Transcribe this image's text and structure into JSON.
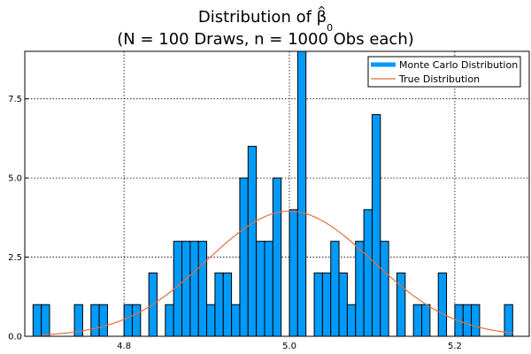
{
  "chart_data": {
    "type": "bar",
    "title": {
      "main": "Distribution of ",
      "beta": "β",
      "hat": "^",
      "subscript": "0",
      "line2": "(N = 100 Draws, n = 1000 Obs each)"
    },
    "xlabel": "",
    "ylabel": "",
    "xlim": [
      4.68,
      5.29
    ],
    "ylim": [
      0,
      9
    ],
    "x_ticks": [
      4.8,
      5.0,
      5.2
    ],
    "x_tick_labels": [
      "4.8",
      "5.0",
      "5.2"
    ],
    "y_ticks": [
      0,
      2.5,
      5,
      7.5
    ],
    "y_tick_labels": [
      "0.0",
      "2.5",
      "5.0",
      "7.5"
    ],
    "grid": true,
    "legend_position": "top-right",
    "bin_width": 0.01,
    "series": [
      {
        "name": "Monte Carlo Distribution",
        "kind": "histogram",
        "color": "#009af9",
        "edge_color": "#000000",
        "bins_start": [
          4.69,
          4.7,
          4.74,
          4.76,
          4.77,
          4.8,
          4.81,
          4.83,
          4.85,
          4.86,
          4.87,
          4.88,
          4.89,
          4.9,
          4.91,
          4.92,
          4.93,
          4.94,
          4.95,
          4.96,
          4.97,
          4.98,
          4.99,
          5.0,
          5.01,
          5.03,
          5.04,
          5.05,
          5.06,
          5.07,
          5.08,
          5.09,
          5.1,
          5.11,
          5.13,
          5.15,
          5.16,
          5.18,
          5.2,
          5.21,
          5.22,
          5.26
        ],
        "counts": [
          1,
          1,
          1,
          1,
          1,
          1,
          1,
          2,
          1,
          3,
          3,
          3,
          3,
          1,
          2,
          2,
          1,
          5,
          6,
          3,
          3,
          5,
          0,
          4,
          9,
          2,
          2,
          3,
          2,
          1,
          3,
          4,
          7,
          3,
          2,
          1,
          1,
          2,
          1,
          1,
          1,
          1
        ]
      },
      {
        "name": "True Distribution",
        "kind": "line",
        "color": "#e26f46",
        "curve": "normal",
        "mean": 5.0,
        "sd": 0.1,
        "peak": 3.95,
        "x_range": [
          4.7,
          5.27
        ]
      }
    ]
  }
}
